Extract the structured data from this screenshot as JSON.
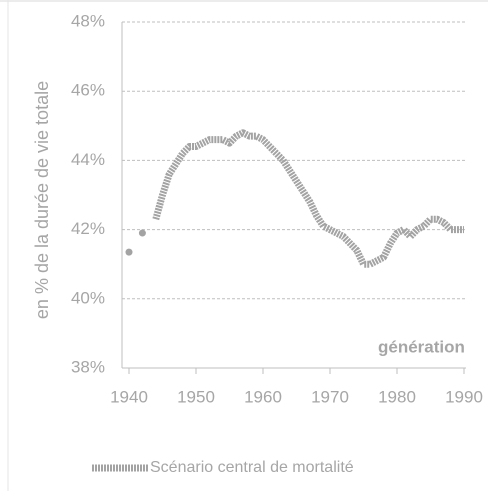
{
  "chart_data": {
    "type": "line",
    "y_label": "en % de la durée de vie totale",
    "annotation": "génération",
    "x": [
      1940,
      1941,
      1942,
      1943,
      1944,
      1945,
      1946,
      1947,
      1948,
      1949,
      1950,
      1951,
      1952,
      1953,
      1954,
      1955,
      1956,
      1957,
      1958,
      1959,
      1960,
      1961,
      1962,
      1963,
      1964,
      1965,
      1966,
      1967,
      1968,
      1969,
      1970,
      1971,
      1972,
      1973,
      1974,
      1975,
      1976,
      1977,
      1978,
      1979,
      1980,
      1981,
      1982,
      1983,
      1984,
      1985,
      1986,
      1987,
      1988,
      1989,
      1990
    ],
    "series": [
      {
        "name": "Scénario central de mortalité",
        "color": "#a3a3a3",
        "values": [
          41.35,
          null,
          41.9,
          null,
          42.3,
          43.0,
          43.6,
          43.9,
          44.2,
          44.4,
          44.4,
          44.5,
          44.6,
          44.6,
          44.6,
          44.5,
          44.7,
          44.8,
          44.7,
          44.7,
          44.6,
          44.4,
          44.2,
          44.0,
          43.7,
          43.4,
          43.1,
          42.8,
          42.4,
          42.1,
          42.0,
          41.9,
          41.8,
          41.6,
          41.4,
          41.0,
          41.0,
          41.1,
          41.2,
          41.6,
          41.9,
          42.0,
          41.8,
          42.0,
          42.1,
          42.3,
          42.3,
          42.2,
          42.0,
          42.0,
          42.0
        ]
      }
    ],
    "xlim": [
      1940,
      1990
    ],
    "xticks": [
      1940,
      1950,
      1960,
      1970,
      1980,
      1990
    ],
    "ylim": [
      38,
      48
    ],
    "yticks": [
      {
        "value": 38,
        "label": "38%"
      },
      {
        "value": 40,
        "label": "40%"
      },
      {
        "value": 42,
        "label": "42%"
      },
      {
        "value": 44,
        "label": "44%"
      },
      {
        "value": 46,
        "label": "46%"
      },
      {
        "value": 48,
        "label": "48%"
      }
    ],
    "grid": true
  }
}
